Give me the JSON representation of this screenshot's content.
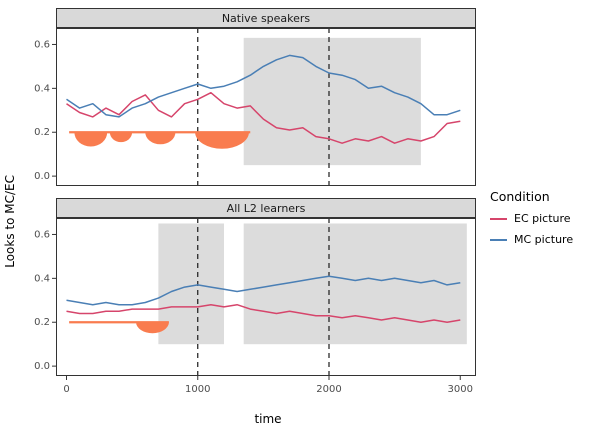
{
  "chart_data": {
    "type": "line",
    "xlabel": "time",
    "ylabel": "Looks to MC/EC",
    "xlim": [
      -80,
      3120
    ],
    "ylim": [
      -0.045,
      0.675
    ],
    "x_ticks": [
      0,
      1000,
      2000,
      3000
    ],
    "x_tick_labels": [
      "0",
      "1000",
      "2000",
      "3000"
    ],
    "y_ticks": [
      0.0,
      0.2,
      0.4,
      0.6
    ],
    "y_tick_labels": [
      "0.0",
      "0.2",
      "0.4",
      "0.6"
    ],
    "vlines": [
      1000,
      2000
    ],
    "x": [
      0,
      100,
      200,
      300,
      400,
      500,
      600,
      700,
      800,
      900,
      1000,
      1100,
      1200,
      1300,
      1400,
      1500,
      1600,
      1700,
      1800,
      1900,
      2000,
      2100,
      2200,
      2300,
      2400,
      2500,
      2600,
      2700,
      2800,
      2900,
      3000
    ],
    "legend": {
      "title": "Condition",
      "items": [
        {
          "label": "EC picture",
          "color": "#d6456b"
        },
        {
          "label": "MC picture",
          "color": "#4a7fb5"
        }
      ]
    },
    "colors": {
      "shade": "#dcdcdc",
      "significance": "#f97c4f",
      "strip_bg": "#d9d9d9",
      "panel_border": "#333333",
      "vline": "#1a1a1a",
      "tick": "#333333",
      "tick_text": "#4d4d4d",
      "background": "#ffffff"
    },
    "facets": [
      {
        "title": "Native speakers",
        "shaded_regions": [
          {
            "x0": 1350,
            "x1": 2700,
            "y0": 0.05,
            "y1": 0.63
          }
        ],
        "significance_marks": {
          "baseline_y": 0.2,
          "baseline_x0": 20,
          "baseline_x1": 1400,
          "bumps": [
            {
              "x0": 60,
              "x1": 310,
              "depth": 0.065
            },
            {
              "x0": 330,
              "x1": 500,
              "depth": 0.045
            },
            {
              "x0": 600,
              "x1": 830,
              "depth": 0.055
            },
            {
              "x0": 980,
              "x1": 1390,
              "depth": 0.075
            }
          ]
        },
        "series": [
          {
            "name": "EC picture",
            "color": "#d6456b",
            "values": [
              0.33,
              0.29,
              0.27,
              0.31,
              0.28,
              0.34,
              0.37,
              0.3,
              0.27,
              0.33,
              0.35,
              0.38,
              0.33,
              0.31,
              0.32,
              0.26,
              0.22,
              0.21,
              0.22,
              0.18,
              0.17,
              0.15,
              0.17,
              0.16,
              0.18,
              0.15,
              0.17,
              0.16,
              0.18,
              0.24,
              0.25
            ]
          },
          {
            "name": "MC picture",
            "color": "#4a7fb5",
            "values": [
              0.35,
              0.31,
              0.33,
              0.28,
              0.27,
              0.31,
              0.33,
              0.36,
              0.38,
              0.4,
              0.42,
              0.4,
              0.41,
              0.43,
              0.46,
              0.5,
              0.53,
              0.55,
              0.54,
              0.5,
              0.47,
              0.46,
              0.44,
              0.4,
              0.41,
              0.38,
              0.36,
              0.33,
              0.28,
              0.28,
              0.3
            ]
          }
        ]
      },
      {
        "title": "All L2 learners",
        "shaded_regions": [
          {
            "x0": 700,
            "x1": 1200,
            "y0": 0.1,
            "y1": 0.65
          },
          {
            "x0": 1350,
            "x1": 3050,
            "y0": 0.1,
            "y1": 0.65
          }
        ],
        "significance_marks": {
          "baseline_y": 0.2,
          "baseline_x0": 20,
          "baseline_x1": 780,
          "bumps": [
            {
              "x0": 530,
              "x1": 780,
              "depth": 0.05
            }
          ]
        },
        "series": [
          {
            "name": "EC picture",
            "color": "#d6456b",
            "values": [
              0.25,
              0.24,
              0.24,
              0.25,
              0.25,
              0.26,
              0.26,
              0.26,
              0.27,
              0.27,
              0.27,
              0.28,
              0.27,
              0.28,
              0.26,
              0.25,
              0.24,
              0.25,
              0.24,
              0.23,
              0.23,
              0.22,
              0.23,
              0.22,
              0.21,
              0.22,
              0.21,
              0.2,
              0.21,
              0.2,
              0.21
            ]
          },
          {
            "name": "MC picture",
            "color": "#4a7fb5",
            "values": [
              0.3,
              0.29,
              0.28,
              0.29,
              0.28,
              0.28,
              0.29,
              0.31,
              0.34,
              0.36,
              0.37,
              0.36,
              0.35,
              0.34,
              0.35,
              0.36,
              0.37,
              0.38,
              0.39,
              0.4,
              0.41,
              0.4,
              0.39,
              0.4,
              0.39,
              0.4,
              0.39,
              0.38,
              0.39,
              0.37,
              0.38
            ]
          }
        ]
      }
    ]
  }
}
